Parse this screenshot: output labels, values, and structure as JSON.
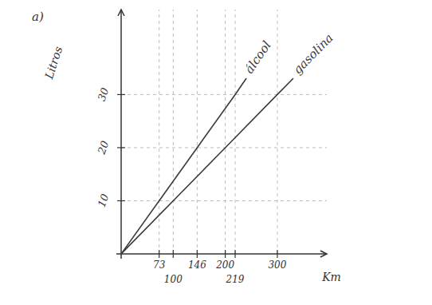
{
  "chart_data": {
    "type": "line",
    "title": "a)",
    "x_label": "Km",
    "y_label": "Litros",
    "series": [
      {
        "name": "álcool",
        "color": "#3a3a3a",
        "x": [
          0,
          73,
          146,
          219,
          240
        ],
        "values": [
          0,
          10,
          20,
          30,
          33
        ]
      },
      {
        "name": "gasolina",
        "color": "#3a3a3a",
        "x": [
          0,
          100,
          200,
          300,
          330
        ],
        "values": [
          0,
          10,
          20,
          30,
          33
        ]
      }
    ],
    "xlim": [
      0,
      395
    ],
    "ylim": [
      0,
      46
    ],
    "xticks": [
      73,
      100,
      146,
      200,
      219,
      300
    ],
    "yticks": [
      10,
      20,
      30
    ],
    "grid": true
  }
}
